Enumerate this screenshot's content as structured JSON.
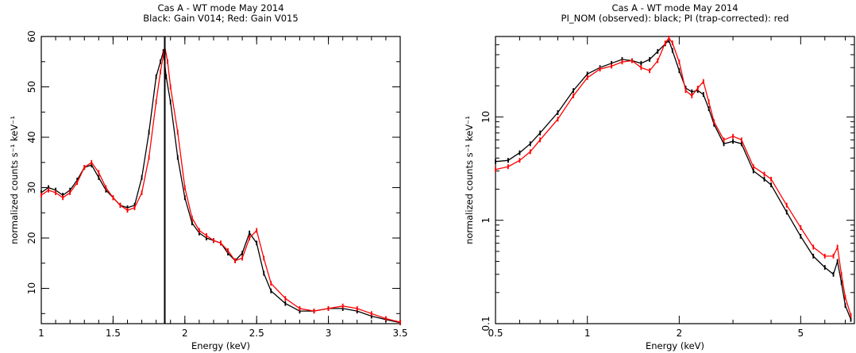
{
  "chart_data": [
    {
      "type": "line",
      "title": "Cas A - WT mode May 2014",
      "subtitle": "Black: Gain V014; Red: Gain V015",
      "xlabel": "Energy (keV)",
      "ylabel": "normalized counts s⁻¹ keV⁻¹",
      "xlim": [
        1,
        3.5
      ],
      "ylim": [
        3,
        60
      ],
      "xscale": "linear",
      "yscale": "linear",
      "xticks": [
        1,
        1.5,
        2,
        2.5,
        3,
        3.5
      ],
      "xticklabels": [
        "1",
        "1.5",
        "2",
        "2.5",
        "3",
        "3.5"
      ],
      "yticks": [
        10,
        20,
        30,
        40,
        50,
        60
      ],
      "yticklabels": [
        "10",
        "20",
        "30",
        "40",
        "50",
        "60"
      ],
      "vertical_line_x": 1.86,
      "series": [
        {
          "name": "Gain V014",
          "color": "#000000",
          "x": [
            1.0,
            1.05,
            1.1,
            1.15,
            1.2,
            1.25,
            1.3,
            1.35,
            1.4,
            1.45,
            1.5,
            1.55,
            1.6,
            1.65,
            1.7,
            1.75,
            1.8,
            1.83,
            1.85,
            1.87,
            1.9,
            1.95,
            2.0,
            2.05,
            2.1,
            2.15,
            2.2,
            2.25,
            2.3,
            2.35,
            2.4,
            2.45,
            2.5,
            2.55,
            2.6,
            2.7,
            2.8,
            2.9,
            3.0,
            3.1,
            3.2,
            3.3,
            3.4,
            3.5
          ],
          "y": [
            29,
            30,
            29.5,
            28.5,
            29.5,
            31.5,
            34,
            34.5,
            32,
            29.5,
            28,
            26.5,
            26,
            26.5,
            32,
            41,
            52,
            55,
            57,
            52,
            47,
            36,
            28,
            23,
            21,
            20,
            19.5,
            19,
            17,
            15.5,
            17,
            21,
            19,
            13,
            9.5,
            7,
            5.5,
            5.5,
            6,
            6,
            5.5,
            4.5,
            3.8,
            3.2
          ]
        },
        {
          "name": "Gain V015",
          "color": "#ff0000",
          "x": [
            1.0,
            1.05,
            1.1,
            1.15,
            1.2,
            1.25,
            1.3,
            1.35,
            1.4,
            1.45,
            1.5,
            1.55,
            1.6,
            1.65,
            1.7,
            1.75,
            1.8,
            1.83,
            1.86,
            1.88,
            1.9,
            1.95,
            2.0,
            2.05,
            2.1,
            2.15,
            2.2,
            2.25,
            2.3,
            2.35,
            2.4,
            2.45,
            2.5,
            2.55,
            2.6,
            2.7,
            2.8,
            2.9,
            3.0,
            3.1,
            3.2,
            3.3,
            3.4,
            3.5
          ],
          "y": [
            28.5,
            29.5,
            29,
            28,
            29,
            31,
            34,
            35,
            33,
            30,
            28,
            26.5,
            25.5,
            26,
            29,
            36,
            47,
            53,
            58,
            55,
            50,
            41,
            30,
            24,
            21.5,
            20.5,
            19.5,
            19,
            17.5,
            15.5,
            16,
            20,
            21.5,
            16,
            11,
            8,
            6,
            5.5,
            6,
            6.5,
            6,
            5,
            4,
            3.3
          ]
        }
      ]
    },
    {
      "type": "line",
      "title": "Cas A - WT mode May 2014",
      "subtitle": "PI_NOM (observed): black; PI (trap-corrected): red",
      "xlabel": "Energy (keV)",
      "ylabel": "normalized counts s⁻¹ keV⁻¹",
      "xlim": [
        0.5,
        7.5
      ],
      "ylim": [
        0.1,
        60
      ],
      "xscale": "log",
      "yscale": "log",
      "xticks": [
        0.5,
        1,
        2,
        5
      ],
      "xticklabels": [
        "0.5",
        "1",
        "2",
        "5"
      ],
      "yticks": [
        0.1,
        1,
        10
      ],
      "yticklabels": [
        "0.1",
        "1",
        "10"
      ],
      "series": [
        {
          "name": "PI_NOM (observed)",
          "color": "#000000",
          "x": [
            0.5,
            0.55,
            0.6,
            0.65,
            0.7,
            0.8,
            0.9,
            1.0,
            1.1,
            1.2,
            1.3,
            1.4,
            1.5,
            1.6,
            1.7,
            1.8,
            1.85,
            1.9,
            2.0,
            2.1,
            2.2,
            2.3,
            2.4,
            2.5,
            2.6,
            2.8,
            3.0,
            3.2,
            3.5,
            3.8,
            4.0,
            4.5,
            5.0,
            5.5,
            6.0,
            6.4,
            6.6,
            6.8,
            7.0,
            7.3
          ],
          "y": [
            3.7,
            3.8,
            4.5,
            5.5,
            7,
            11,
            18,
            26,
            30,
            33,
            36,
            35,
            33,
            36,
            43,
            51,
            55,
            44,
            28,
            19,
            17.5,
            18,
            16.5,
            12,
            8.5,
            5.5,
            5.8,
            5.5,
            3,
            2.5,
            2.2,
            1.2,
            0.7,
            0.45,
            0.35,
            0.3,
            0.4,
            0.25,
            0.15,
            0.11
          ]
        },
        {
          "name": "PI (trap-corrected)",
          "color": "#ff0000",
          "x": [
            0.5,
            0.55,
            0.6,
            0.65,
            0.7,
            0.8,
            0.9,
            1.0,
            1.1,
            1.2,
            1.3,
            1.4,
            1.5,
            1.6,
            1.7,
            1.8,
            1.85,
            1.9,
            2.0,
            2.1,
            2.2,
            2.3,
            2.4,
            2.5,
            2.6,
            2.8,
            3.0,
            3.2,
            3.5,
            3.8,
            4.0,
            4.5,
            5.0,
            5.5,
            6.0,
            6.4,
            6.6,
            6.8,
            7.0,
            7.3
          ],
          "y": [
            3.1,
            3.3,
            3.8,
            4.6,
            6,
            9.5,
            16,
            24,
            29,
            31,
            34,
            35,
            30,
            28,
            35,
            52,
            58,
            52,
            34,
            18,
            16,
            19,
            22,
            14,
            9,
            6,
            6.5,
            6,
            3.3,
            2.8,
            2.5,
            1.4,
            0.85,
            0.55,
            0.45,
            0.45,
            0.55,
            0.3,
            0.18,
            0.12
          ]
        }
      ]
    }
  ]
}
